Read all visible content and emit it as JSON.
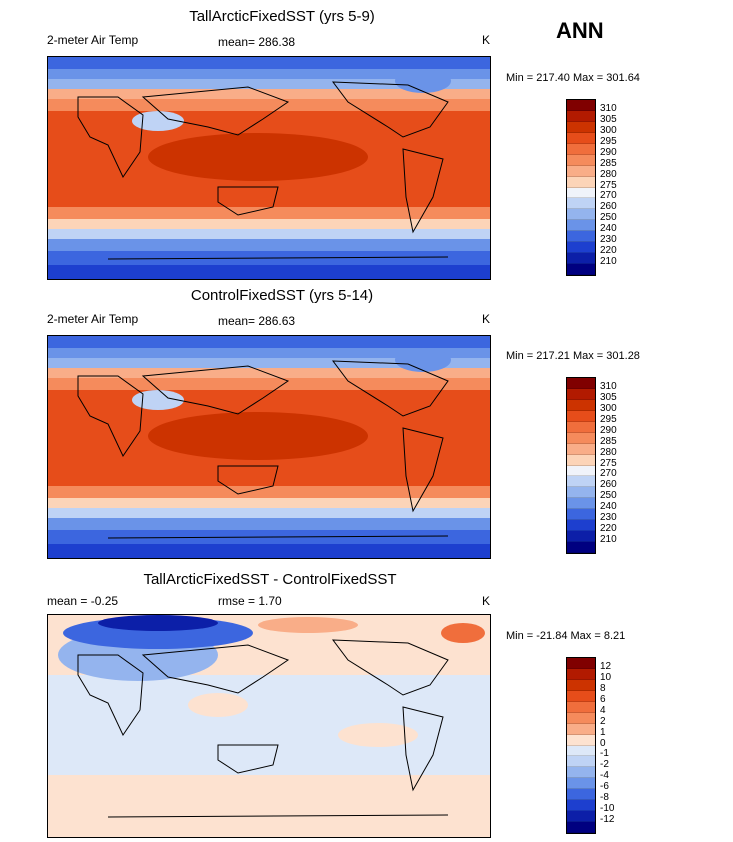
{
  "header": {
    "season": "ANN"
  },
  "panels": [
    {
      "title": "TallArcticFixedSST (yrs 5-9)",
      "left_label": "2-meter Air Temp",
      "mid_label": "mean= 286.38",
      "units": "K",
      "minmax": "Min = 217.40 Max = 301.64",
      "colorbar": {
        "labels": [
          "310",
          "305",
          "300",
          "295",
          "290",
          "285",
          "280",
          "275",
          "270",
          "260",
          "250",
          "240",
          "230",
          "220",
          "210"
        ],
        "colors": [
          "#800000",
          "#b21a00",
          "#cc3300",
          "#e64d1a",
          "#f06e3c",
          "#f58b5c",
          "#f9ad88",
          "#fcd4b8",
          "#f0f3fa",
          "#bfd3f5",
          "#94b4ee",
          "#6a93e8",
          "#3c66df",
          "#1d3fcf",
          "#0c1fa8",
          "#000080"
        ]
      }
    },
    {
      "title": "ControlFixedSST (yrs 5-14)",
      "left_label": "2-meter Air Temp",
      "mid_label": "mean= 286.63",
      "units": "K",
      "minmax": "Min = 217.21 Max = 301.28",
      "colorbar": {
        "labels": [
          "310",
          "305",
          "300",
          "295",
          "290",
          "285",
          "280",
          "275",
          "270",
          "260",
          "250",
          "240",
          "230",
          "220",
          "210"
        ],
        "colors": [
          "#800000",
          "#b21a00",
          "#cc3300",
          "#e64d1a",
          "#f06e3c",
          "#f58b5c",
          "#f9ad88",
          "#fcd4b8",
          "#f0f3fa",
          "#bfd3f5",
          "#94b4ee",
          "#6a93e8",
          "#3c66df",
          "#1d3fcf",
          "#0c1fa8",
          "#000080"
        ]
      }
    },
    {
      "title": "TallArcticFixedSST - ControlFixedSST",
      "left_label": "mean =   -0.25",
      "mid_label": "rmse =    1.70",
      "units": "K",
      "minmax": "Min = -21.84 Max =   8.21",
      "colorbar": {
        "labels": [
          "12",
          "10",
          "8",
          "6",
          "4",
          "2",
          "1",
          "0",
          "-1",
          "-2",
          "-4",
          "-6",
          "-8",
          "-10",
          "-12"
        ],
        "colors": [
          "#800000",
          "#b21a00",
          "#cc3300",
          "#e64d1a",
          "#f06e3c",
          "#f58b5c",
          "#f9ad88",
          "#fde2d0",
          "#dde8f8",
          "#bfd3f5",
          "#94b4ee",
          "#6a93e8",
          "#3c66df",
          "#1d3fcf",
          "#0c1fa8",
          "#000080"
        ]
      }
    }
  ]
}
